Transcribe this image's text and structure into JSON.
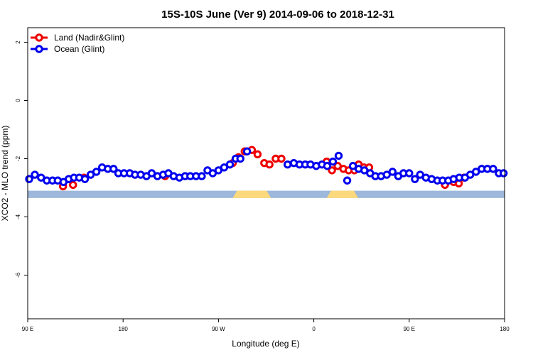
{
  "chart_data": {
    "type": "scatter",
    "title": "15S-10S June (Ver 9)   2014-09-06 to 2018-12-31",
    "xlabel": "Longitude (deg E)",
    "ylabel": "XCO2 - MLO trend (ppm)",
    "xlim": [
      0,
      1
    ],
    "ylim": [
      -7.5,
      2.5
    ],
    "x_ticks": [
      "90 E",
      "180",
      "90 W",
      "0",
      "90 E",
      "180"
    ],
    "y_ticks": [
      2,
      0,
      -2,
      -4,
      -6
    ],
    "y_tick_labels": [
      "2",
      "0",
      "-2",
      "-4",
      "-6"
    ],
    "legend_position": "top-left",
    "grid": false,
    "surface_band": {
      "ocean_color": "#9db8da",
      "land_color": "#fcd97c",
      "y_range": [
        -3.35,
        -3.1
      ],
      "land_segments": [
        [
          0.43,
          0.51
        ],
        [
          0.627,
          0.693
        ]
      ]
    },
    "series": [
      {
        "name": "Land (Nadir&Glint)",
        "color": "#ee0000",
        "points": [
          [
            0.074,
            -2.95
          ],
          [
            0.095,
            -2.9
          ],
          [
            0.118,
            -2.65
          ],
          [
            0.288,
            -2.6
          ],
          [
            0.43,
            -2.15
          ],
          [
            0.442,
            -1.95
          ],
          [
            0.455,
            -1.75
          ],
          [
            0.47,
            -1.7
          ],
          [
            0.482,
            -1.85
          ],
          [
            0.496,
            -2.15
          ],
          [
            0.507,
            -2.2
          ],
          [
            0.52,
            -2.0
          ],
          [
            0.532,
            -2.0
          ],
          [
            0.627,
            -2.1
          ],
          [
            0.638,
            -2.4
          ],
          [
            0.65,
            -2.25
          ],
          [
            0.662,
            -2.35
          ],
          [
            0.673,
            -2.4
          ],
          [
            0.685,
            -2.4
          ],
          [
            0.694,
            -2.2
          ],
          [
            0.705,
            -2.3
          ],
          [
            0.716,
            -2.3
          ],
          [
            0.875,
            -2.9
          ],
          [
            0.893,
            -2.8
          ],
          [
            0.904,
            -2.85
          ],
          [
            0.915,
            -2.65
          ]
        ]
      },
      {
        "name": "Ocean (Glint)",
        "color": "#0000ee",
        "points": [
          [
            0.003,
            -2.7
          ],
          [
            0.015,
            -2.55
          ],
          [
            0.028,
            -2.65
          ],
          [
            0.04,
            -2.75
          ],
          [
            0.052,
            -2.75
          ],
          [
            0.063,
            -2.75
          ],
          [
            0.075,
            -2.8
          ],
          [
            0.086,
            -2.7
          ],
          [
            0.097,
            -2.65
          ],
          [
            0.108,
            -2.65
          ],
          [
            0.12,
            -2.7
          ],
          [
            0.132,
            -2.55
          ],
          [
            0.144,
            -2.45
          ],
          [
            0.156,
            -2.3
          ],
          [
            0.168,
            -2.35
          ],
          [
            0.18,
            -2.35
          ],
          [
            0.19,
            -2.5
          ],
          [
            0.202,
            -2.5
          ],
          [
            0.214,
            -2.5
          ],
          [
            0.225,
            -2.55
          ],
          [
            0.237,
            -2.55
          ],
          [
            0.249,
            -2.6
          ],
          [
            0.26,
            -2.5
          ],
          [
            0.272,
            -2.6
          ],
          [
            0.284,
            -2.55
          ],
          [
            0.295,
            -2.5
          ],
          [
            0.306,
            -2.6
          ],
          [
            0.318,
            -2.65
          ],
          [
            0.33,
            -2.6
          ],
          [
            0.341,
            -2.6
          ],
          [
            0.353,
            -2.6
          ],
          [
            0.365,
            -2.6
          ],
          [
            0.377,
            -2.4
          ],
          [
            0.388,
            -2.5
          ],
          [
            0.4,
            -2.4
          ],
          [
            0.412,
            -2.3
          ],
          [
            0.424,
            -2.2
          ],
          [
            0.436,
            -2.0
          ],
          [
            0.446,
            -2.0
          ],
          [
            0.46,
            -1.75
          ],
          [
            0.545,
            -2.2
          ],
          [
            0.558,
            -2.15
          ],
          [
            0.57,
            -2.2
          ],
          [
            0.582,
            -2.2
          ],
          [
            0.593,
            -2.2
          ],
          [
            0.605,
            -2.25
          ],
          [
            0.617,
            -2.2
          ],
          [
            0.628,
            -2.25
          ],
          [
            0.64,
            -2.1
          ],
          [
            0.652,
            -1.9
          ],
          [
            0.67,
            -2.75
          ],
          [
            0.682,
            -2.25
          ],
          [
            0.694,
            -2.35
          ],
          [
            0.706,
            -2.4
          ],
          [
            0.718,
            -2.5
          ],
          [
            0.729,
            -2.6
          ],
          [
            0.741,
            -2.6
          ],
          [
            0.753,
            -2.55
          ],
          [
            0.765,
            -2.45
          ],
          [
            0.777,
            -2.6
          ],
          [
            0.788,
            -2.5
          ],
          [
            0.8,
            -2.5
          ],
          [
            0.812,
            -2.7
          ],
          [
            0.823,
            -2.55
          ],
          [
            0.835,
            -2.65
          ],
          [
            0.847,
            -2.7
          ],
          [
            0.859,
            -2.75
          ],
          [
            0.87,
            -2.75
          ],
          [
            0.882,
            -2.75
          ],
          [
            0.893,
            -2.7
          ],
          [
            0.905,
            -2.65
          ],
          [
            0.917,
            -2.65
          ],
          [
            0.928,
            -2.55
          ],
          [
            0.94,
            -2.45
          ],
          [
            0.952,
            -2.35
          ],
          [
            0.964,
            -2.35
          ],
          [
            0.976,
            -2.35
          ],
          [
            0.988,
            -2.5
          ],
          [
            0.998,
            -2.5
          ]
        ]
      }
    ]
  }
}
